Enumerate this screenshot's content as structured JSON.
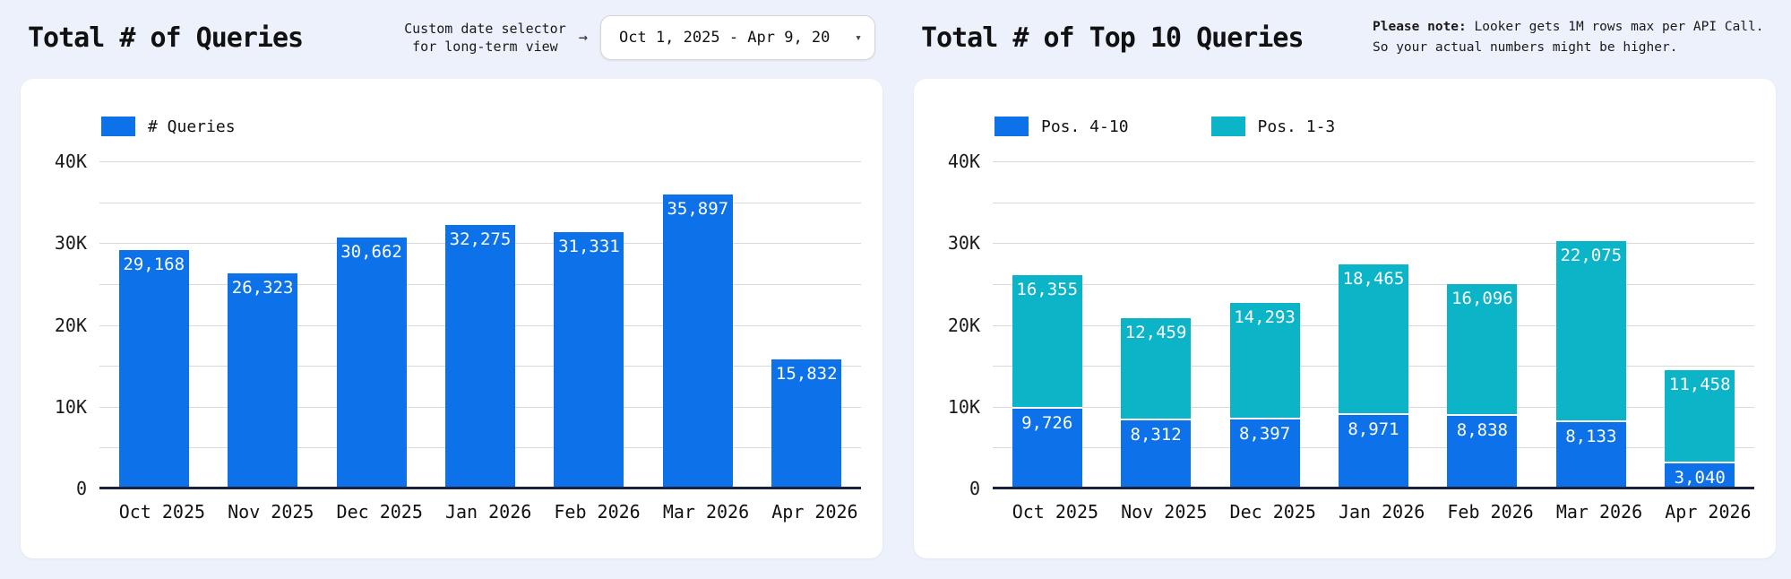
{
  "page": {
    "background": "#edf1fc",
    "card_background": "#ffffff"
  },
  "colors": {
    "blue": "#0d72e9",
    "teal": "#0cb4c7",
    "axis": "#16233b",
    "grid": "#d9d9d9",
    "bar_label_text": "#ffffff"
  },
  "icons": {
    "arrow_right": "→",
    "caret_down": "▾"
  },
  "left": {
    "title": "Total # of Queries",
    "date_selector": {
      "label_line1": "Custom date selector",
      "label_line2": "for long-term view",
      "value": "Oct 1, 2025 - Apr 9, 20"
    }
  },
  "right": {
    "title": "Total # of Top 10 Queries",
    "note_bold": "Please note:",
    "note_rest": " Looker gets 1M rows max per API Call. So your actual numbers might be higher."
  },
  "chart_data": [
    {
      "type": "bar",
      "title": "Total # of Queries",
      "stacked": false,
      "categories": [
        "Oct 2025",
        "Nov 2025",
        "Dec 2025",
        "Jan 2026",
        "Feb 2026",
        "Mar 2026",
        "Apr 2026"
      ],
      "series": [
        {
          "name": "# Queries",
          "color_key": "blue",
          "values": [
            29168,
            26323,
            30662,
            32275,
            31331,
            35897,
            15832
          ]
        }
      ],
      "ylim": [
        0,
        40000
      ],
      "ytick_step": 10000,
      "grid_step": 5000,
      "ytick_labels": [
        "0",
        "10K",
        "20K",
        "30K",
        "40K"
      ],
      "grid": true,
      "legend_position": "top-left",
      "xlabel": "",
      "ylabel": ""
    },
    {
      "type": "bar",
      "title": "Total # of Top 10 Queries",
      "stacked": true,
      "categories": [
        "Oct 2025",
        "Nov 2025",
        "Dec 2025",
        "Jan 2026",
        "Feb 2026",
        "Mar 2026",
        "Apr 2026"
      ],
      "series": [
        {
          "name": "Pos. 4-10",
          "color_key": "blue",
          "values": [
            9726,
            8312,
            8397,
            8971,
            8838,
            8133,
            3040
          ]
        },
        {
          "name": "Pos. 1-3",
          "color_key": "teal",
          "values": [
            16355,
            12459,
            14293,
            18465,
            16096,
            22075,
            11458
          ]
        }
      ],
      "ylim": [
        0,
        40000
      ],
      "ytick_step": 10000,
      "grid_step": 5000,
      "ytick_labels": [
        "0",
        "10K",
        "20K",
        "30K",
        "40K"
      ],
      "grid": true,
      "legend_position": "top-left",
      "xlabel": "",
      "ylabel": ""
    }
  ]
}
